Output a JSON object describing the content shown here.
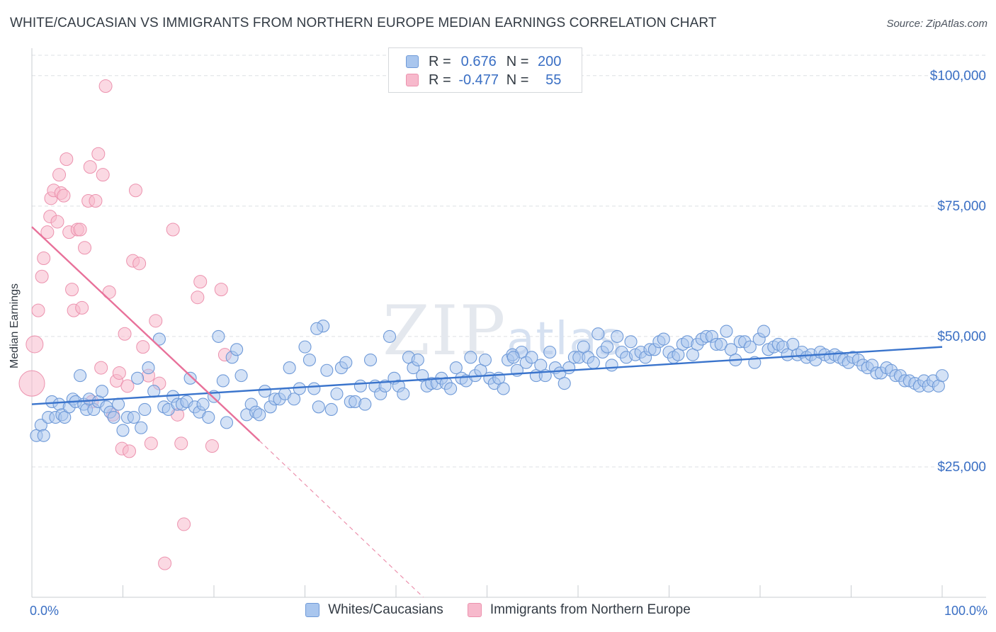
{
  "title": "WHITE/CAUCASIAN VS IMMIGRANTS FROM NORTHERN EUROPE MEDIAN EARNINGS CORRELATION CHART",
  "source": "Source: ZipAtlas.com",
  "watermark": "ZIPatlas",
  "legend": {
    "rows": [
      {
        "r_label": "R =",
        "r_value": "0.676",
        "n_label": "N =",
        "n_value": "200"
      },
      {
        "r_label": "R =",
        "r_value": "-0.477",
        "n_label": "N =",
        "n_value": "55"
      }
    ]
  },
  "bottom_legend": [
    "Whites/Caucasians",
    "Immigrants from Northern Europe"
  ],
  "colors": {
    "blue_fill": "#a9c6ee",
    "blue_stroke": "#6f9ad8",
    "blue_line": "#3a74cc",
    "pink_fill": "#f7b9cc",
    "pink_stroke": "#ec92ae",
    "pink_line": "#e8719a",
    "axis_text": "#3a6fc4",
    "grid": "#dde0e4"
  },
  "chart_data": {
    "type": "scatter",
    "title": "WHITE/CAUCASIAN VS IMMIGRANTS FROM NORTHERN EUROPE MEDIAN EARNINGS CORRELATION CHART",
    "xlabel": "",
    "ylabel": "Median Earnings",
    "xlim": [
      0,
      100
    ],
    "ylim": [
      0,
      105000
    ],
    "x_tick_labels": [
      "0.0%",
      "100.0%"
    ],
    "y_ticks": [
      25000,
      50000,
      75000,
      100000
    ],
    "y_tick_labels": [
      "$25,000",
      "$50,000",
      "$75,000",
      "$100,000"
    ],
    "series": [
      {
        "name": "Whites/Caucasians",
        "R": 0.676,
        "N": 200,
        "trend": {
          "x": [
            0,
            100
          ],
          "y": [
            37000,
            48000
          ]
        },
        "points": [
          [
            0.5,
            31000
          ],
          [
            1.0,
            33000
          ],
          [
            1.3,
            31000
          ],
          [
            1.8,
            34500
          ],
          [
            2.2,
            37500
          ],
          [
            2.6,
            34500
          ],
          [
            3.0,
            37000
          ],
          [
            3.3,
            35000
          ],
          [
            3.6,
            34500
          ],
          [
            4.1,
            36500
          ],
          [
            4.5,
            38000
          ],
          [
            4.8,
            37500
          ],
          [
            5.3,
            42500
          ],
          [
            5.7,
            37000
          ],
          [
            6.0,
            36000
          ],
          [
            6.3,
            38000
          ],
          [
            6.8,
            36000
          ],
          [
            7.3,
            37500
          ],
          [
            7.7,
            39500
          ],
          [
            8.2,
            36500
          ],
          [
            8.6,
            35500
          ],
          [
            9.0,
            34500
          ],
          [
            9.5,
            37000
          ],
          [
            10.0,
            32000
          ],
          [
            10.5,
            34500
          ],
          [
            11.2,
            34500
          ],
          [
            11.6,
            42000
          ],
          [
            12.0,
            32500
          ],
          [
            12.4,
            36000
          ],
          [
            12.8,
            44000
          ],
          [
            13.4,
            39500
          ],
          [
            14.0,
            49500
          ],
          [
            14.5,
            36500
          ],
          [
            15.0,
            36000
          ],
          [
            15.5,
            38500
          ],
          [
            16.0,
            37000
          ],
          [
            16.5,
            37000
          ],
          [
            17.0,
            37500
          ],
          [
            17.4,
            42000
          ],
          [
            17.9,
            36500
          ],
          [
            18.4,
            35500
          ],
          [
            18.8,
            37000
          ],
          [
            19.4,
            34500
          ],
          [
            20.0,
            38500
          ],
          [
            20.5,
            50000
          ],
          [
            21.0,
            41500
          ],
          [
            21.4,
            33500
          ],
          [
            22.0,
            46000
          ],
          [
            22.5,
            47500
          ],
          [
            23.0,
            42500
          ],
          [
            23.6,
            35000
          ],
          [
            24.1,
            37000
          ],
          [
            24.6,
            35500
          ],
          [
            25.0,
            35000
          ],
          [
            25.6,
            39500
          ],
          [
            26.2,
            36500
          ],
          [
            26.7,
            38000
          ],
          [
            27.2,
            38000
          ],
          [
            27.8,
            39000
          ],
          [
            28.3,
            44000
          ],
          [
            28.8,
            38000
          ],
          [
            29.4,
            40000
          ],
          [
            30.0,
            48000
          ],
          [
            30.5,
            45500
          ],
          [
            31.0,
            40000
          ],
          [
            31.5,
            36500
          ],
          [
            32.0,
            52000
          ],
          [
            32.4,
            43500
          ],
          [
            32.9,
            36000
          ],
          [
            33.5,
            39000
          ],
          [
            34.0,
            44000
          ],
          [
            34.5,
            45000
          ],
          [
            35.0,
            37500
          ],
          [
            35.5,
            37500
          ],
          [
            36.1,
            40500
          ],
          [
            36.6,
            37000
          ],
          [
            37.2,
            45500
          ],
          [
            37.7,
            40500
          ],
          [
            38.3,
            39000
          ],
          [
            38.8,
            40500
          ],
          [
            39.3,
            50000
          ],
          [
            39.8,
            42000
          ],
          [
            40.3,
            40500
          ],
          [
            40.8,
            39000
          ],
          [
            41.4,
            46000
          ],
          [
            41.9,
            44000
          ],
          [
            42.4,
            45500
          ],
          [
            42.9,
            42500
          ],
          [
            43.4,
            40500
          ],
          [
            43.9,
            41000
          ],
          [
            44.5,
            41000
          ],
          [
            45.0,
            42000
          ],
          [
            45.5,
            41000
          ],
          [
            46.0,
            40000
          ],
          [
            46.6,
            44000
          ],
          [
            47.2,
            42000
          ],
          [
            47.7,
            41500
          ],
          [
            48.2,
            46000
          ],
          [
            48.7,
            42500
          ],
          [
            49.3,
            43500
          ],
          [
            49.8,
            45500
          ],
          [
            50.3,
            42000
          ],
          [
            50.8,
            41000
          ],
          [
            51.3,
            42000
          ],
          [
            51.8,
            40000
          ],
          [
            52.3,
            45500
          ],
          [
            52.8,
            46500
          ],
          [
            53.3,
            43500
          ],
          [
            53.8,
            47000
          ],
          [
            54.3,
            45000
          ],
          [
            54.9,
            46000
          ],
          [
            55.4,
            42500
          ],
          [
            55.9,
            44500
          ],
          [
            56.4,
            42500
          ],
          [
            56.9,
            47000
          ],
          [
            57.5,
            44000
          ],
          [
            58.0,
            43000
          ],
          [
            58.5,
            41000
          ],
          [
            59.0,
            44000
          ],
          [
            59.6,
            46000
          ],
          [
            60.1,
            46000
          ],
          [
            60.6,
            48000
          ],
          [
            61.1,
            46000
          ],
          [
            61.7,
            45000
          ],
          [
            62.2,
            50500
          ],
          [
            62.7,
            47000
          ],
          [
            63.2,
            48000
          ],
          [
            63.7,
            44500
          ],
          [
            64.3,
            50000
          ],
          [
            64.8,
            47000
          ],
          [
            65.3,
            46000
          ],
          [
            65.8,
            49000
          ],
          [
            66.3,
            46500
          ],
          [
            66.9,
            47000
          ],
          [
            67.4,
            46000
          ],
          [
            67.9,
            47500
          ],
          [
            68.4,
            47500
          ],
          [
            68.9,
            49000
          ],
          [
            69.4,
            49500
          ],
          [
            70.0,
            47000
          ],
          [
            70.5,
            46000
          ],
          [
            71.0,
            46500
          ],
          [
            71.5,
            48500
          ],
          [
            72.0,
            49000
          ],
          [
            72.6,
            46500
          ],
          [
            73.1,
            48500
          ],
          [
            73.6,
            49500
          ],
          [
            74.1,
            50000
          ],
          [
            74.7,
            50000
          ],
          [
            75.2,
            48500
          ],
          [
            75.7,
            48500
          ],
          [
            76.3,
            51000
          ],
          [
            76.8,
            47500
          ],
          [
            77.3,
            45500
          ],
          [
            77.8,
            49000
          ],
          [
            78.3,
            49000
          ],
          [
            78.9,
            48000
          ],
          [
            79.4,
            45000
          ],
          [
            79.9,
            49500
          ],
          [
            80.4,
            51000
          ],
          [
            80.9,
            47500
          ],
          [
            81.5,
            48000
          ],
          [
            82.0,
            48500
          ],
          [
            82.5,
            48000
          ],
          [
            83.0,
            46500
          ],
          [
            83.6,
            48500
          ],
          [
            84.1,
            46500
          ],
          [
            84.6,
            47000
          ],
          [
            85.1,
            46000
          ],
          [
            85.6,
            46500
          ],
          [
            86.1,
            45500
          ],
          [
            86.6,
            47000
          ],
          [
            87.1,
            46500
          ],
          [
            87.7,
            46000
          ],
          [
            88.2,
            46500
          ],
          [
            88.7,
            46000
          ],
          [
            89.2,
            45500
          ],
          [
            89.7,
            45000
          ],
          [
            90.2,
            46000
          ],
          [
            90.8,
            45500
          ],
          [
            91.3,
            44500
          ],
          [
            91.8,
            44000
          ],
          [
            92.3,
            44500
          ],
          [
            92.8,
            43000
          ],
          [
            93.3,
            43000
          ],
          [
            93.9,
            44000
          ],
          [
            94.4,
            43500
          ],
          [
            94.9,
            42500
          ],
          [
            95.4,
            42500
          ],
          [
            95.9,
            41500
          ],
          [
            96.4,
            41500
          ],
          [
            97.0,
            41000
          ],
          [
            97.5,
            40500
          ],
          [
            98.0,
            41500
          ],
          [
            98.5,
            40500
          ],
          [
            99.0,
            41500
          ],
          [
            99.6,
            40500
          ],
          [
            100.0,
            42500
          ],
          [
            31.3,
            51500
          ],
          [
            52.9,
            46000
          ]
        ]
      },
      {
        "name": "Immigrants from Northern Europe",
        "R": -0.477,
        "N": 55,
        "trend": {
          "x": [
            0,
            25
          ],
          "y": [
            71000,
            30000
          ]
        },
        "trend_extension": {
          "x": [
            25,
            43
          ],
          "y": [
            30000,
            0
          ]
        },
        "points": [
          [
            0.0,
            41000
          ],
          [
            0.3,
            48500
          ],
          [
            0.7,
            55000
          ],
          [
            1.1,
            61500
          ],
          [
            1.3,
            65000
          ],
          [
            1.7,
            70000
          ],
          [
            2.0,
            73000
          ],
          [
            2.1,
            76500
          ],
          [
            2.4,
            78000
          ],
          [
            2.8,
            72000
          ],
          [
            3.0,
            81000
          ],
          [
            3.2,
            77500
          ],
          [
            3.5,
            77000
          ],
          [
            3.8,
            84000
          ],
          [
            4.1,
            70000
          ],
          [
            4.4,
            59000
          ],
          [
            4.6,
            55000
          ],
          [
            5.0,
            70500
          ],
          [
            5.3,
            70500
          ],
          [
            5.5,
            55500
          ],
          [
            5.8,
            67000
          ],
          [
            6.2,
            76000
          ],
          [
            6.4,
            82500
          ],
          [
            7.0,
            76000
          ],
          [
            7.3,
            85000
          ],
          [
            7.6,
            44000
          ],
          [
            7.8,
            81000
          ],
          [
            8.1,
            98000
          ],
          [
            8.5,
            58500
          ],
          [
            8.9,
            35000
          ],
          [
            9.3,
            41500
          ],
          [
            9.6,
            43000
          ],
          [
            9.9,
            28500
          ],
          [
            10.2,
            50500
          ],
          [
            10.5,
            40500
          ],
          [
            10.7,
            28000
          ],
          [
            11.1,
            64500
          ],
          [
            11.4,
            78000
          ],
          [
            11.8,
            64000
          ],
          [
            12.2,
            48000
          ],
          [
            12.8,
            42500
          ],
          [
            13.1,
            29500
          ],
          [
            13.6,
            53000
          ],
          [
            14.0,
            41000
          ],
          [
            14.6,
            6500
          ],
          [
            15.5,
            70500
          ],
          [
            16.0,
            35000
          ],
          [
            16.4,
            29500
          ],
          [
            16.7,
            14000
          ],
          [
            18.2,
            57500
          ],
          [
            18.5,
            60500
          ],
          [
            19.8,
            29000
          ],
          [
            20.8,
            59000
          ],
          [
            21.2,
            46500
          ],
          [
            6.6,
            37500
          ]
        ]
      }
    ]
  }
}
